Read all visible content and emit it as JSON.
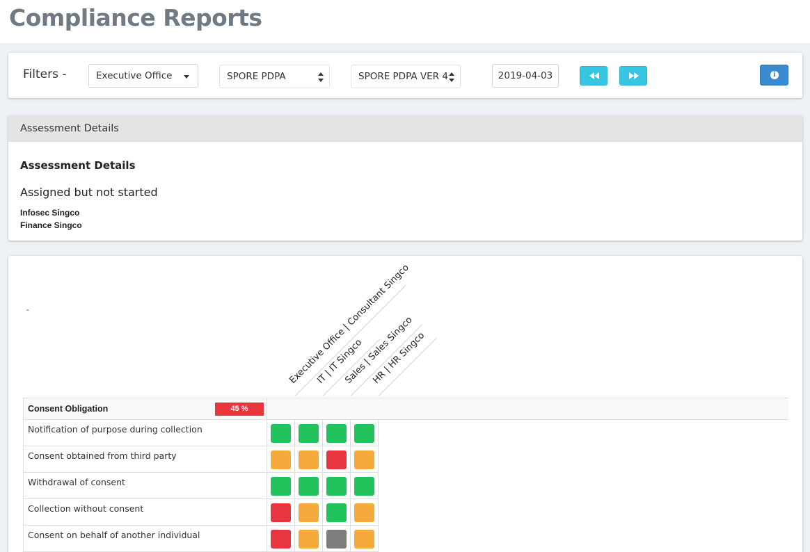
{
  "page": {
    "title": "Compliance Reports"
  },
  "filters": {
    "label": "Filters -",
    "department": "Executive Office",
    "regulation": "SPORE PDPA",
    "version": "SPORE PDPA VER 4",
    "date": "2019-04-03",
    "prev_icon": "fast-backward-icon",
    "next_icon": "fast-forward-icon",
    "info_icon": "info-icon"
  },
  "assessment": {
    "panel_title": "Assessment Details",
    "heading": "Assessment Details",
    "status": "Assigned but not started",
    "entities": [
      "Infosec Singco",
      "Finance Singco"
    ]
  },
  "matrix": {
    "dash": "-",
    "columns": [
      "Executive Office  |  Consultant Singco",
      "IT  |  IT Singco",
      "Sales  |  Sales Singco",
      "HR  |  HR Singco"
    ],
    "section": {
      "label": "Consent Obligation",
      "percent": "45 %"
    },
    "rows": [
      {
        "label": "Notification of purpose during collection",
        "statuses": [
          "green",
          "green",
          "green",
          "green"
        ]
      },
      {
        "label": "Consent obtained from third party",
        "statuses": [
          "orange",
          "orange",
          "red",
          "orange"
        ]
      },
      {
        "label": "Withdrawal of consent",
        "statuses": [
          "green",
          "green",
          "green",
          "green"
        ]
      },
      {
        "label": "Collection without consent",
        "statuses": [
          "red",
          "orange",
          "green",
          "orange"
        ]
      },
      {
        "label": "Consent on behalf of another individual",
        "statuses": [
          "red",
          "orange",
          "gray",
          "orange"
        ]
      }
    ],
    "colors": {
      "green": "#22c25c",
      "orange": "#f7aa3c",
      "red": "#e7363f",
      "gray": "#7d7d7d"
    }
  }
}
